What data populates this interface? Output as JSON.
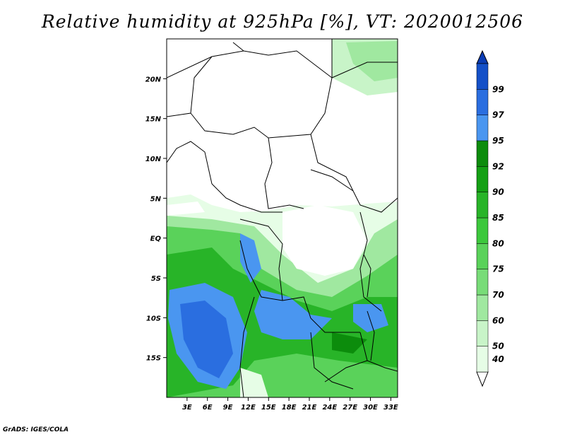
{
  "title": "Relative humidity at 925hPa [%], VT: 2020012506",
  "credit": "GrADS: IGES/COLA",
  "map": {
    "lon_range": [
      0,
      34
    ],
    "lat_range": [
      -20,
      25
    ],
    "lon_ticks": [
      "3E",
      "6E",
      "9E",
      "12E",
      "15E",
      "18E",
      "21E",
      "24E",
      "27E",
      "30E",
      "33E"
    ],
    "lat_ticks": [
      "20N",
      "15N",
      "10N",
      "5N",
      "EQ",
      "5S",
      "10S",
      "15S"
    ]
  },
  "colorbar": {
    "levels": [
      "40",
      "50",
      "60",
      "70",
      "75",
      "80",
      "85",
      "90",
      "92",
      "95",
      "97",
      "99"
    ],
    "colors": [
      "#ffffff",
      "#e6fde6",
      "#c8f4c8",
      "#a0e8a0",
      "#78dc78",
      "#5ad25a",
      "#3cc83c",
      "#28b428",
      "#14a014",
      "#0c8c0c",
      "#4a96f0",
      "#2a6ee0",
      "#1450c8",
      "#0a3cb4"
    ]
  },
  "chart_data": {
    "type": "heatmap",
    "title": "Relative humidity at 925hPa [%], VT: 2020012506",
    "xlabel": "",
    "ylabel": "",
    "x_range": [
      "0E",
      "34E"
    ],
    "y_range": [
      "20S",
      "25N"
    ],
    "units": "%",
    "contour_levels": [
      40,
      50,
      60,
      70,
      75,
      80,
      85,
      90,
      92,
      95,
      97,
      99
    ]
  }
}
